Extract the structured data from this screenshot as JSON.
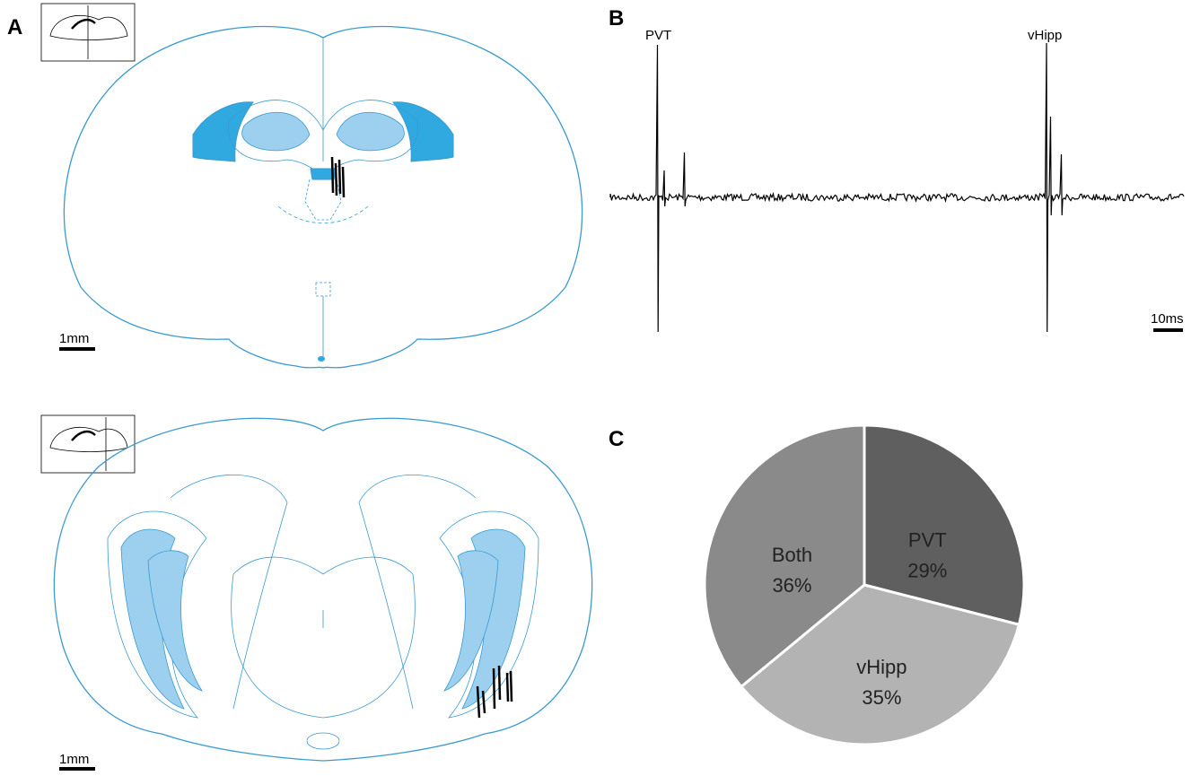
{
  "panels": {
    "a": {
      "label": "A",
      "scale_top": "1mm",
      "scale_bottom": "1mm"
    },
    "b": {
      "label": "B",
      "trace_labels": [
        "PVT",
        "vHipp"
      ],
      "scale": "10ms"
    },
    "c": {
      "label": "C"
    }
  },
  "chart_data": {
    "type": "pie",
    "categories": [
      "PVT",
      "vHipp",
      "Both"
    ],
    "values": [
      29,
      35,
      36
    ],
    "value_labels": [
      "29%",
      "35%",
      "36%"
    ],
    "colors": [
      "#5f5f5f",
      "#b3b3b3",
      "#8a8a8a"
    ]
  }
}
